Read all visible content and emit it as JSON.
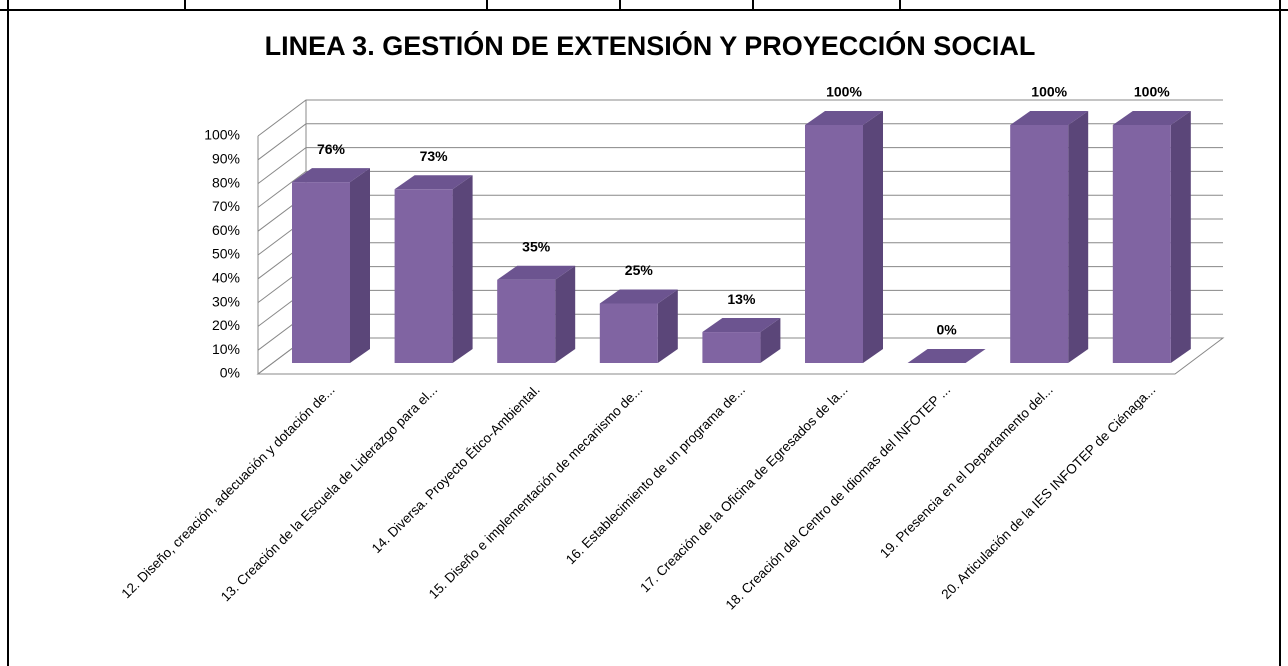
{
  "chart_data": {
    "type": "bar3d",
    "title": "LINEA 3. GESTIÓN DE EXTENSIÓN Y PROYECCIÓN SOCIAL",
    "categories": [
      "12. Diseño, creación, adecuación y dotación de...",
      "13. Creación de la Escuela de Liderazgo para el...",
      "14. Diversa. Proyecto Ético-Ambiental.",
      "15. Diseño e implementación de mecanismo de...",
      "16. Establecimiento de un programa de...",
      "17. Creación de la Oficina de Egresados de la...",
      "18. Creación del Centro de Idiomas del INFOTEP ...",
      "19. Presencia en el Departamento del...",
      "20. Articulación de la IES INFOTEP de Ciénaga..."
    ],
    "values": [
      76,
      73,
      35,
      25,
      13,
      100,
      0,
      100,
      100
    ],
    "value_labels": [
      "76%",
      "73%",
      "35%",
      "25%",
      "13%",
      "100%",
      "0%",
      "100%",
      "100%"
    ],
    "color": "#8064a2",
    "ylim": [
      0,
      100
    ],
    "yticks": [
      {
        "value": 0,
        "label": "0%"
      },
      {
        "value": 10,
        "label": "10%"
      },
      {
        "value": 20,
        "label": "20%"
      },
      {
        "value": 30,
        "label": "30%"
      },
      {
        "value": 40,
        "label": "40%"
      },
      {
        "value": 50,
        "label": "50%"
      },
      {
        "value": 60,
        "label": "60%"
      },
      {
        "value": 70,
        "label": "70%"
      },
      {
        "value": 80,
        "label": "80%"
      },
      {
        "value": 90,
        "label": "90%"
      },
      {
        "value": 100,
        "label": "100%"
      }
    ],
    "grid": true
  }
}
